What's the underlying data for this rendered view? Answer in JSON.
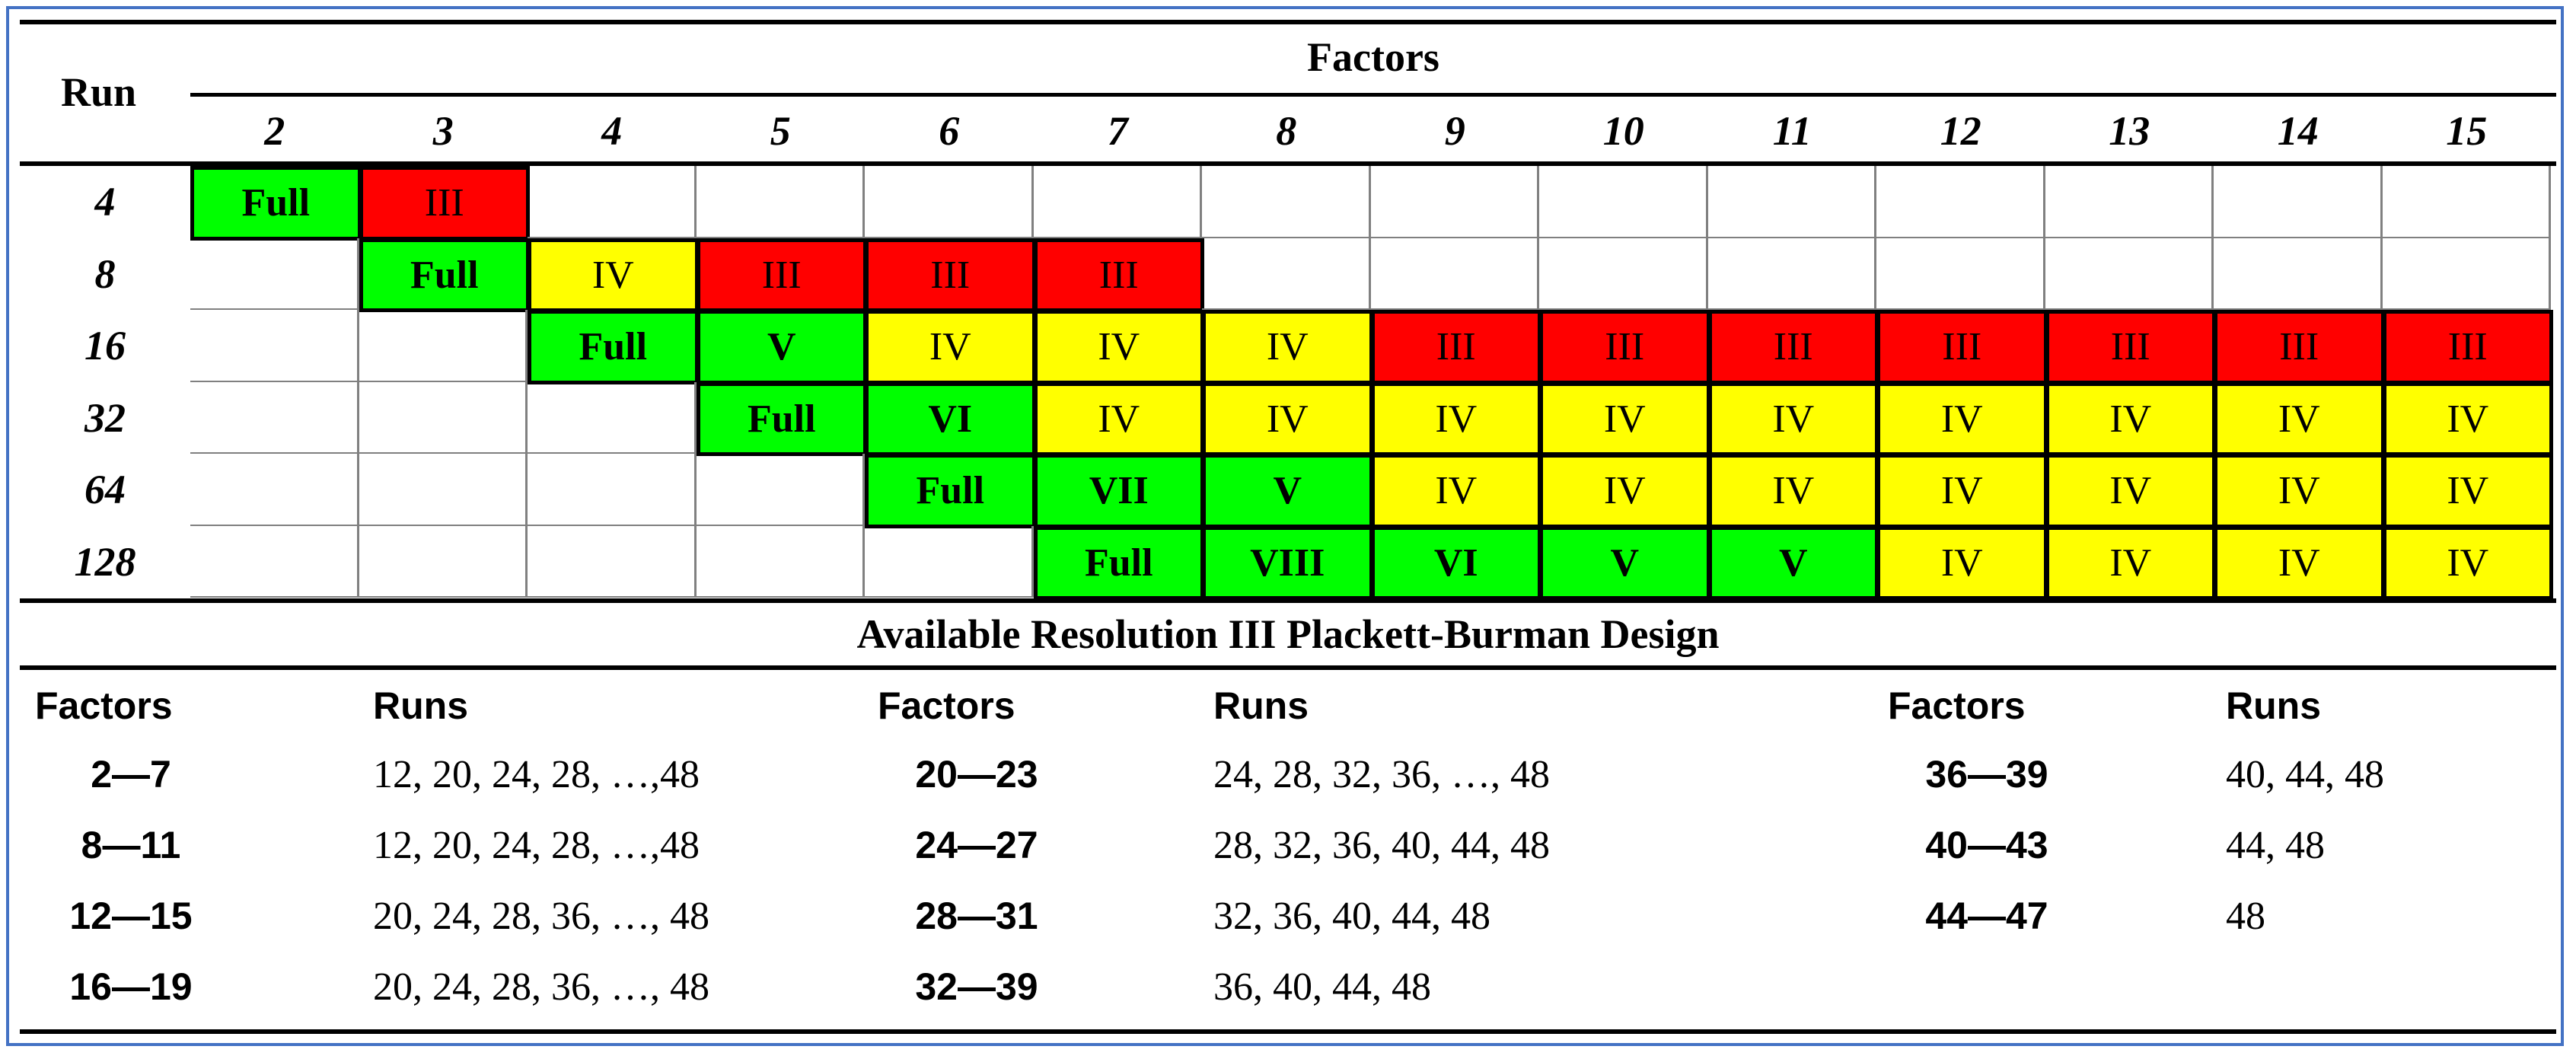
{
  "header": {
    "run_label": "Run",
    "factors_label": "Factors",
    "factor_columns": [
      "2",
      "3",
      "4",
      "5",
      "6",
      "7",
      "8",
      "9",
      "10",
      "11",
      "12",
      "13",
      "14",
      "15"
    ]
  },
  "colors": {
    "green": "#00ff00",
    "yellow": "#ffff00",
    "red": "#ff0000",
    "frame": "#4472c4"
  },
  "resolution_table": {
    "rows": [
      {
        "run": "4",
        "cells": [
          "Full",
          "III",
          "",
          "",
          "",
          "",
          "",
          "",
          "",
          "",
          "",
          "",
          "",
          ""
        ]
      },
      {
        "run": "8",
        "cells": [
          "",
          "Full",
          "IV",
          "III",
          "III",
          "III",
          "",
          "",
          "",
          "",
          "",
          "",
          "",
          ""
        ]
      },
      {
        "run": "16",
        "cells": [
          "",
          "",
          "Full",
          "V",
          "IV",
          "IV",
          "IV",
          "III",
          "III",
          "III",
          "III",
          "III",
          "III",
          "III"
        ]
      },
      {
        "run": "32",
        "cells": [
          "",
          "",
          "",
          "Full",
          "VI",
          "IV",
          "IV",
          "IV",
          "IV",
          "IV",
          "IV",
          "IV",
          "IV",
          "IV"
        ]
      },
      {
        "run": "64",
        "cells": [
          "",
          "",
          "",
          "",
          "Full",
          "VII",
          "V",
          "IV",
          "IV",
          "IV",
          "IV",
          "IV",
          "IV",
          "IV"
        ]
      },
      {
        "run": "128",
        "cells": [
          "",
          "",
          "",
          "",
          "",
          "Full",
          "VIII",
          "VI",
          "V",
          "V",
          "IV",
          "IV",
          "IV",
          "IV"
        ]
      }
    ]
  },
  "pb_section": {
    "title": "Available Resolution III Plackett-Burman Design",
    "groups": [
      {
        "factors_label": "Factors",
        "runs_label": "Runs",
        "rows": [
          {
            "factors": "2—7",
            "runs": "12, 20, 24, 28, …,48"
          },
          {
            "factors": "8—11",
            "runs": "12, 20, 24, 28, …,48"
          },
          {
            "factors": "12—15",
            "runs": "20, 24, 28, 36, …, 48"
          },
          {
            "factors": "16—19",
            "runs": "20, 24, 28, 36, …, 48"
          }
        ]
      },
      {
        "factors_label": "Factors",
        "runs_label": "Runs",
        "rows": [
          {
            "factors": "20—23",
            "runs": "24, 28, 32, 36, …, 48"
          },
          {
            "factors": "24—27",
            "runs": "28, 32, 36, 40, 44, 48"
          },
          {
            "factors": "28—31",
            "runs": "32, 36, 40, 44, 48"
          },
          {
            "factors": "32—39",
            "runs": "36, 40, 44, 48"
          }
        ]
      },
      {
        "factors_label": "Factors",
        "runs_label": "Runs",
        "rows": [
          {
            "factors": "36—39",
            "runs": "40, 44, 48"
          },
          {
            "factors": "40—43",
            "runs": "44, 48"
          },
          {
            "factors": "44—47",
            "runs": "48"
          }
        ]
      }
    ]
  }
}
